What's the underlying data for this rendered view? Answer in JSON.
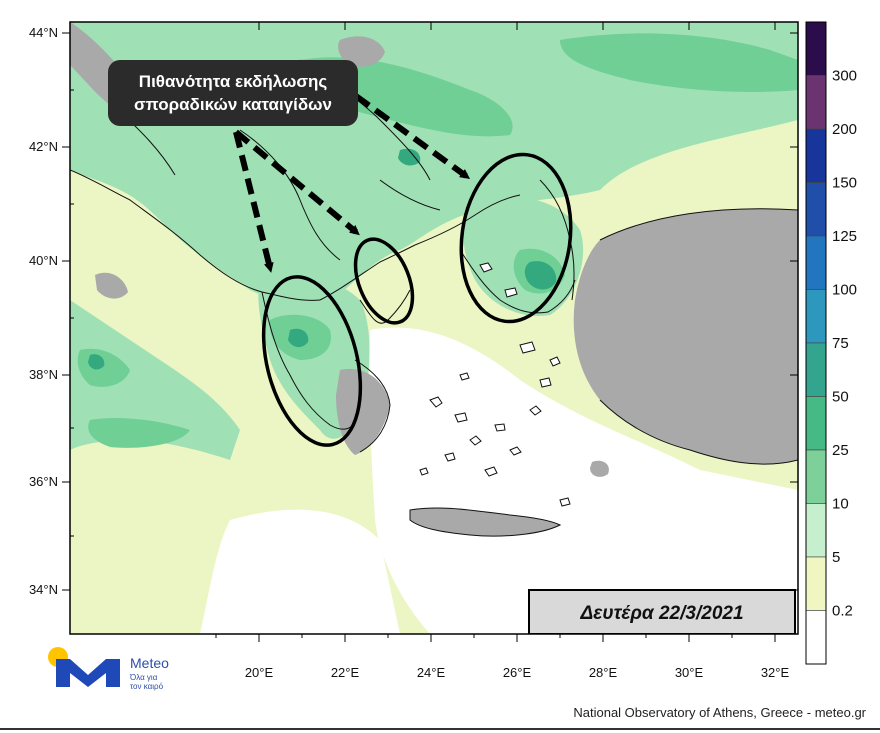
{
  "map": {
    "annotation_text": [
      "Πιθανότητα εκδήλωσης",
      "σποραδικών καταιγίδων"
    ],
    "date_label": "Δευτέρα 22/3/2021",
    "lat_labels": [
      "44°N",
      "42°N",
      "40°N",
      "38°N",
      "36°N",
      "34°N"
    ],
    "lon_labels": [
      "20°E",
      "22°E",
      "24°E",
      "26°E",
      "28°E",
      "30°E",
      "32°E"
    ],
    "colorbar": {
      "labels": [
        "300",
        "200",
        "150",
        "125",
        "100",
        "75",
        "50",
        "25",
        "10",
        "5",
        "0.2"
      ],
      "colors": [
        "#2a0d4a",
        "#6b3470",
        "#17359a",
        "#1f4fa8",
        "#2276c0",
        "#2d97be",
        "#33a58f",
        "#46ba84",
        "#7dd09a",
        "#c6efcd",
        "#eff6c1",
        "#ffffff"
      ]
    },
    "colors": {
      "sea_light": "#ecf5c4",
      "land_green": "#9fe0b4",
      "mid_green": "#6fcf95",
      "dark_green": "#34a97f",
      "gray": "#a9a9a9",
      "annotation_bg": "#2b2b2b"
    }
  },
  "brand": {
    "name": "Meteo",
    "tagline": [
      "Όλα για",
      "τον καιρό"
    ]
  },
  "credit": "National Observatory of Athens, Greece - meteo.gr"
}
